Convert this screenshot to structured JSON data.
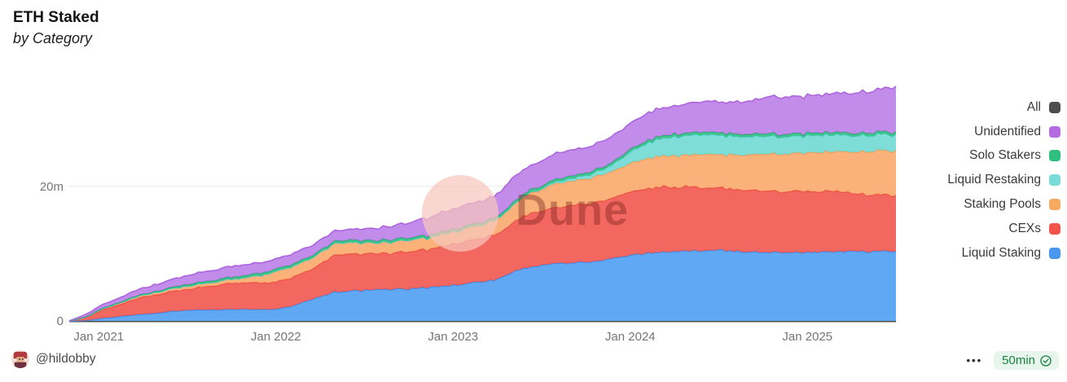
{
  "header": {
    "title": "ETH Staked",
    "subtitle": "by Category"
  },
  "watermark": {
    "text": "Dune"
  },
  "legend": {
    "items": [
      {
        "label": "All",
        "color": "#4d4d4d"
      },
      {
        "label": "Unidentified",
        "color": "#b46be0"
      },
      {
        "label": "Solo Stakers",
        "color": "#2fc07f"
      },
      {
        "label": "Liquid Restaking",
        "color": "#7adcd8"
      },
      {
        "label": "Staking Pools",
        "color": "#f7a95f"
      },
      {
        "label": "CEXs",
        "color": "#f2544d"
      },
      {
        "label": "Liquid Staking",
        "color": "#4a97f0"
      }
    ]
  },
  "footer": {
    "author": "@hildobby",
    "more_options_icon": "•••",
    "refresh": {
      "label": "50min",
      "badge_bg": "#e8f5ec",
      "badge_color": "#17813e",
      "check_icon": "verified-check"
    }
  },
  "chart_data": {
    "type": "area",
    "stacked": true,
    "title": "ETH Staked by Category",
    "xlabel": "",
    "ylabel": "",
    "unit": "millions of ETH",
    "ylim": [
      0,
      35.6
    ],
    "grid": "horizontal-20m-only",
    "legend_position": "right",
    "series_order": "bottom-to-top",
    "x_months": [
      "2020-11",
      "2020-12",
      "2021-01",
      "2021-02",
      "2021-03",
      "2021-04",
      "2021-05",
      "2021-06",
      "2021-07",
      "2021-08",
      "2021-09",
      "2021-10",
      "2021-11",
      "2021-12",
      "2022-01",
      "2022-02",
      "2022-03",
      "2022-04",
      "2022-05",
      "2022-06",
      "2022-07",
      "2022-08",
      "2022-09",
      "2022-10",
      "2022-11",
      "2022-12",
      "2023-01",
      "2023-02",
      "2023-03",
      "2023-04",
      "2023-05",
      "2023-06",
      "2023-07",
      "2023-08",
      "2023-09",
      "2023-10",
      "2023-11",
      "2023-12",
      "2024-01",
      "2024-02",
      "2024-03",
      "2024-04",
      "2024-05",
      "2024-06",
      "2024-07",
      "2024-08",
      "2024-09",
      "2024-10",
      "2024-11",
      "2024-12",
      "2025-01",
      "2025-02",
      "2025-03",
      "2025-04",
      "2025-05",
      "2025-06",
      "2025-07"
    ],
    "x_ticks": [
      {
        "index": 2,
        "label": "Jan 2021"
      },
      {
        "index": 14,
        "label": "Jan 2022"
      },
      {
        "index": 26,
        "label": "Jan 2023"
      },
      {
        "index": 38,
        "label": "Jan 2024"
      },
      {
        "index": 50,
        "label": "Jan 2025"
      }
    ],
    "y_ticks": [
      {
        "value": 0,
        "label": "0"
      },
      {
        "value": 20,
        "label": "20m"
      }
    ],
    "series": [
      {
        "name": "Liquid Staking",
        "fill": "#4a9bf2",
        "stroke": "#3c8cec",
        "values": [
          0,
          0.05,
          0.35,
          0.55,
          0.8,
          1.0,
          1.2,
          1.45,
          1.6,
          1.65,
          1.65,
          1.7,
          1.7,
          1.7,
          1.7,
          2.2,
          2.9,
          3.6,
          4.3,
          4.45,
          4.55,
          4.6,
          4.65,
          4.75,
          4.9,
          5.1,
          5.3,
          5.6,
          5.8,
          6.1,
          7.2,
          7.9,
          8.2,
          8.5,
          8.7,
          8.8,
          9.0,
          9.4,
          9.8,
          10.0,
          10.2,
          10.3,
          10.4,
          10.45,
          10.5,
          10.4,
          10.3,
          10.25,
          10.2,
          10.2,
          10.2,
          10.25,
          10.3,
          10.3,
          10.3,
          10.35,
          10.4
        ]
      },
      {
        "name": "CEXs",
        "fill": "#f1524b",
        "stroke": "#ea4440",
        "values": [
          0,
          0.4,
          1.1,
          1.6,
          2.1,
          2.6,
          2.8,
          3.0,
          3.1,
          3.4,
          3.65,
          3.9,
          3.95,
          4.0,
          4.1,
          4.2,
          4.4,
          4.9,
          5.5,
          5.5,
          5.45,
          5.4,
          5.45,
          5.5,
          5.6,
          5.9,
          6.1,
          6.3,
          6.5,
          6.7,
          7.4,
          7.9,
          8.1,
          8.3,
          8.5,
          8.6,
          8.8,
          9.1,
          9.5,
          9.6,
          9.7,
          9.6,
          9.5,
          9.4,
          9.3,
          9.2,
          9.15,
          9.1,
          9.1,
          9.1,
          9.1,
          9.0,
          8.9,
          8.7,
          8.5,
          8.4,
          8.3
        ]
      },
      {
        "name": "Staking Pools",
        "fill": "#faa768",
        "stroke": "#f69d52",
        "values": [
          0,
          0.05,
          0.12,
          0.18,
          0.25,
          0.3,
          0.35,
          0.4,
          0.45,
          0.5,
          0.55,
          0.6,
          0.8,
          1.1,
          1.6,
          1.6,
          1.65,
          1.7,
          1.7,
          1.7,
          1.6,
          1.6,
          1.65,
          1.7,
          1.75,
          1.8,
          1.8,
          1.9,
          2.0,
          2.2,
          2.6,
          2.9,
          3.1,
          3.5,
          3.6,
          3.8,
          3.9,
          4.0,
          4.2,
          4.4,
          4.6,
          4.7,
          4.8,
          4.9,
          5.0,
          5.1,
          5.2,
          5.4,
          5.5,
          5.6,
          5.7,
          5.8,
          5.9,
          6.1,
          6.3,
          6.5,
          6.7
        ]
      },
      {
        "name": "Liquid Restaking",
        "fill": "#6cd8d1",
        "stroke": "#4fcdc4",
        "values": [
          0,
          0,
          0,
          0,
          0,
          0,
          0,
          0,
          0,
          0,
          0,
          0,
          0,
          0,
          0,
          0,
          0,
          0,
          0,
          0,
          0,
          0,
          0,
          0,
          0,
          0,
          0,
          0,
          0,
          0,
          0,
          0.1,
          0.2,
          0.3,
          0.4,
          0.5,
          0.7,
          1.1,
          1.7,
          2.2,
          2.6,
          2.8,
          2.9,
          2.9,
          2.8,
          2.75,
          2.7,
          2.65,
          2.6,
          2.6,
          2.6,
          2.5,
          2.5,
          2.45,
          2.4,
          2.4,
          2.4
        ]
      },
      {
        "name": "Solo Stakers",
        "fill": "#2cc07f",
        "stroke": "#21aa6c",
        "values": [
          0,
          0.05,
          0.1,
          0.12,
          0.14,
          0.15,
          0.18,
          0.2,
          0.25,
          0.27,
          0.28,
          0.3,
          0.32,
          0.34,
          0.35,
          0.35,
          0.35,
          0.35,
          0.35,
          0.35,
          0.35,
          0.35,
          0.35,
          0.35,
          0.35,
          0.35,
          0.38,
          0.38,
          0.38,
          0.38,
          0.38,
          0.38,
          0.38,
          0.38,
          0.38,
          0.38,
          0.38,
          0.38,
          0.38,
          0.38,
          0.38,
          0.38,
          0.38,
          0.38,
          0.38,
          0.38,
          0.38,
          0.38,
          0.38,
          0.38,
          0.38,
          0.38,
          0.38,
          0.38,
          0.38,
          0.38,
          0.38
        ]
      },
      {
        "name": "Unidentified",
        "fill": "#b97ce7",
        "stroke": "#ad64dd",
        "values": [
          0,
          0.3,
          0.45,
          0.6,
          0.75,
          0.9,
          1.0,
          1.15,
          1.3,
          1.4,
          1.45,
          1.6,
          1.55,
          1.5,
          1.5,
          1.5,
          1.5,
          1.5,
          1.5,
          1.6,
          1.7,
          1.8,
          2.0,
          2.2,
          2.5,
          2.8,
          3.0,
          3.1,
          3.2,
          3.3,
          3.6,
          3.6,
          3.7,
          3.8,
          3.8,
          3.8,
          3.8,
          3.8,
          3.9,
          4.0,
          4.1,
          4.2,
          4.4,
          4.5,
          4.6,
          4.7,
          5.0,
          5.3,
          5.5,
          5.5,
          5.6,
          5.7,
          5.8,
          5.9,
          6.1,
          6.4,
          6.7
        ]
      }
    ]
  }
}
